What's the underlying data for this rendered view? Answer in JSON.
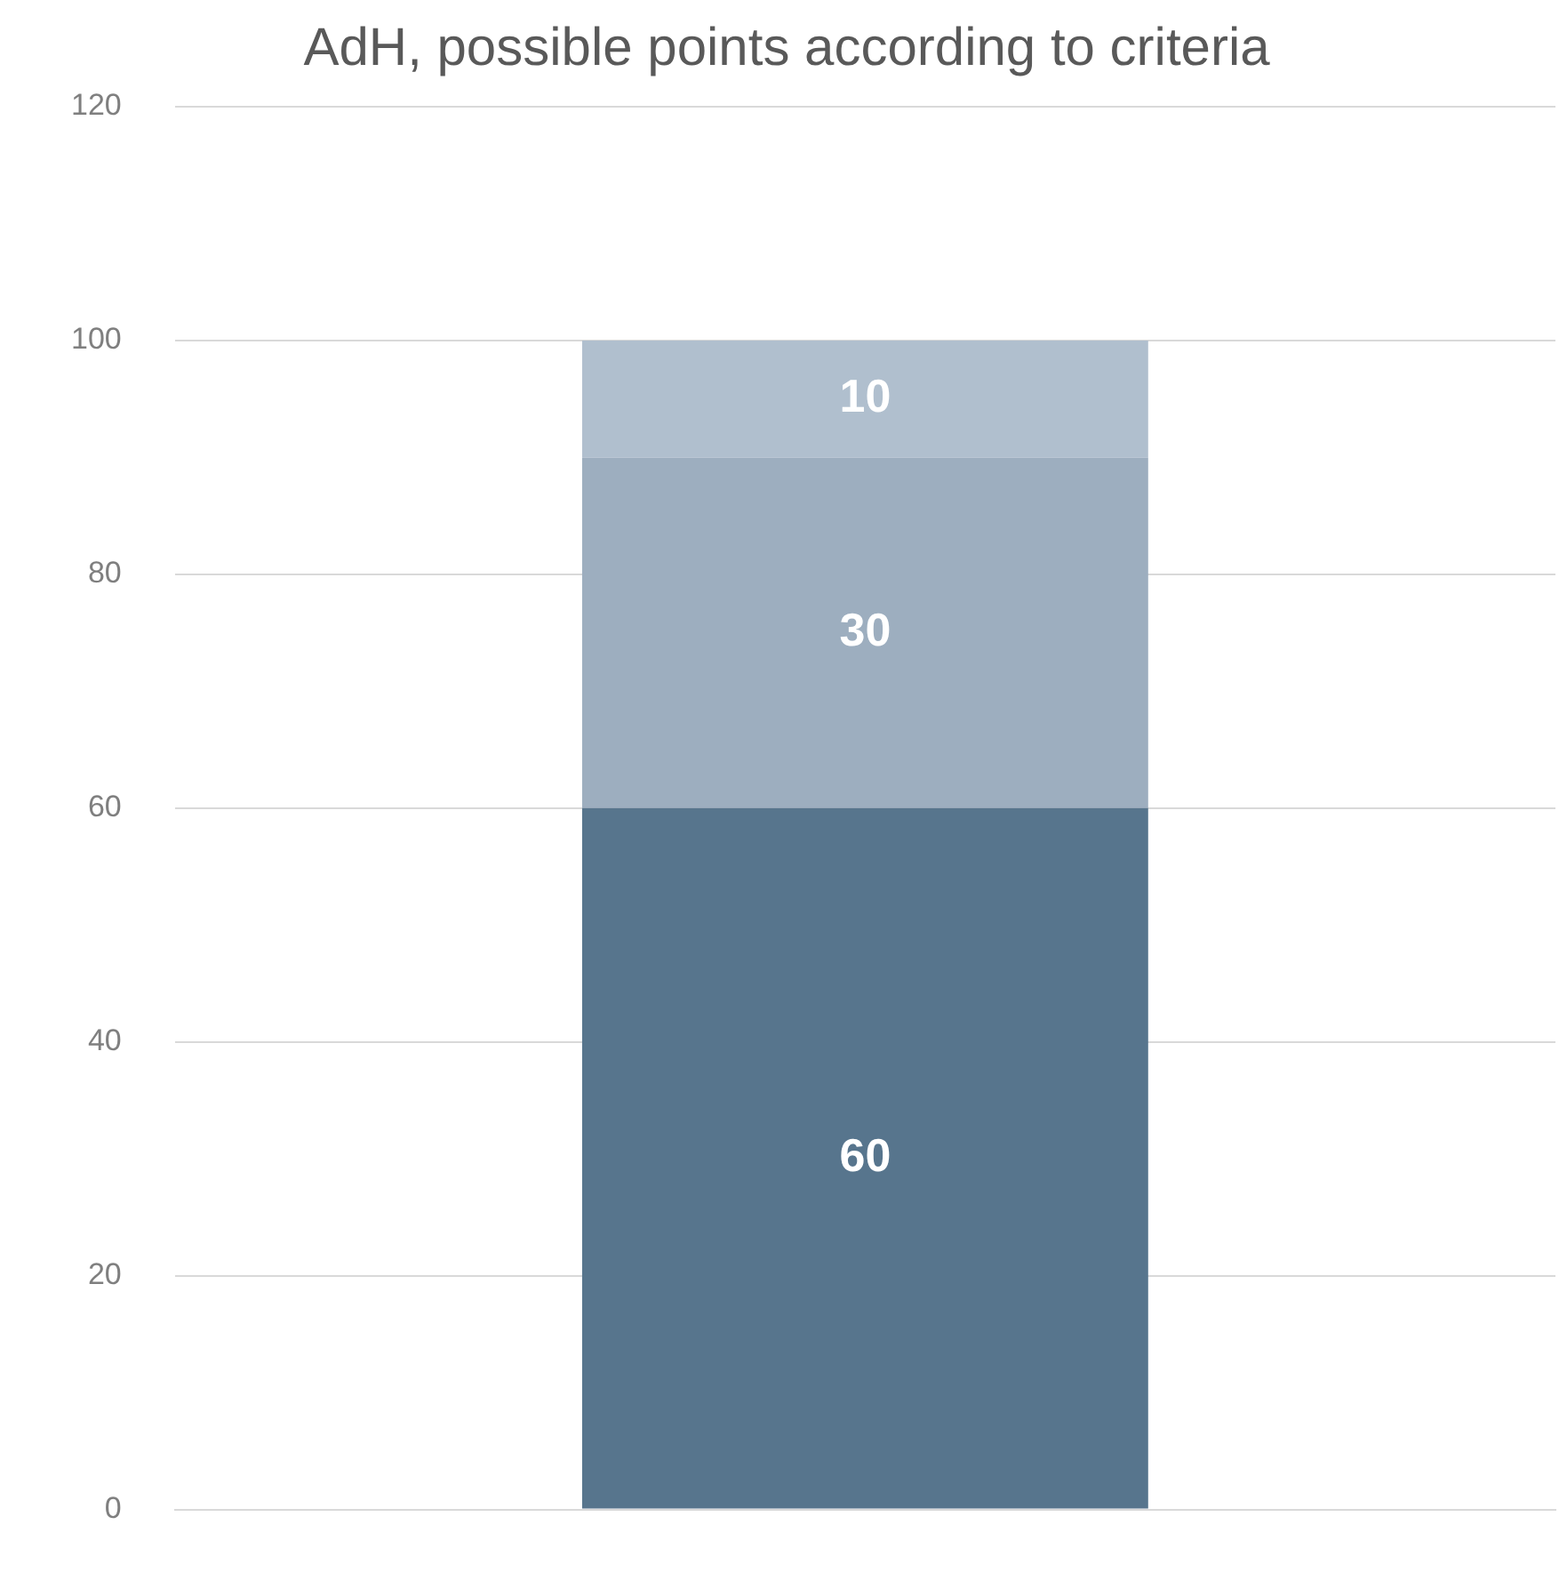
{
  "chart_data": {
    "type": "bar",
    "title": "AdH, possible points according to criteria",
    "categories": [
      null
    ],
    "stacked": true,
    "series": [
      {
        "color": "#57758d",
        "values": [
          60
        ]
      },
      {
        "color": "#9daebf",
        "values": [
          30
        ]
      },
      {
        "color": "#b0bfce",
        "values": [
          10
        ]
      }
    ],
    "ylim": [
      0,
      120
    ],
    "yticks": [
      0,
      20,
      40,
      60,
      80,
      100,
      120
    ],
    "grid": "y",
    "legend": false,
    "data_labels": true
  }
}
